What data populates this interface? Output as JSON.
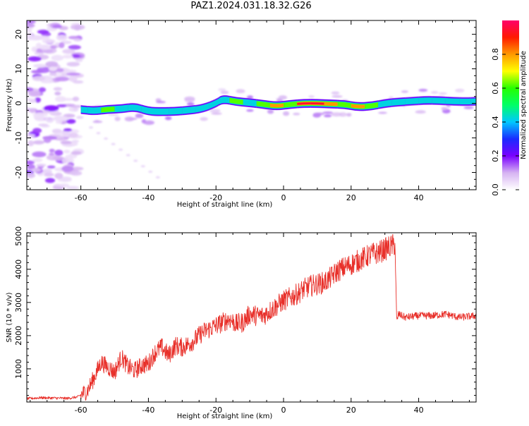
{
  "figure": {
    "title": "PAZ1.2024.031.18.32.G26"
  },
  "chart_data": [
    {
      "type": "heatmap",
      "title": "PAZ1.2024.031.18.32.G26",
      "xlabel": "Height of straight line (km)",
      "ylabel": "Frequency (Hz)",
      "xlim": [
        -76,
        57
      ],
      "ylim": [
        -25,
        24
      ],
      "x_ticks": [
        -60,
        -40,
        -20,
        0,
        20,
        40
      ],
      "y_ticks": [
        -20,
        -10,
        0,
        10,
        20
      ],
      "colorbar": {
        "label": "Normalized spectral amplitude",
        "range": [
          0,
          1
        ],
        "ticks": [
          0.0,
          0.2,
          0.4,
          0.6,
          0.8
        ],
        "colormap": "rainbow",
        "stops": [
          "#ffffff",
          "#d6b3f2",
          "#7a00ff",
          "#1a2bff",
          "#00c8ff",
          "#00ff66",
          "#26ff00",
          "#ffff00",
          "#ff9900",
          "#ff1a00",
          "#ff006a"
        ]
      },
      "ridge": {
        "x": [
          -60,
          -56,
          -52,
          -48,
          -44,
          -40,
          -36,
          -32,
          -28,
          -24,
          -20,
          -18,
          -14,
          -10,
          -6,
          -2,
          2,
          6,
          10,
          14,
          18,
          22,
          26,
          30,
          34,
          38,
          42,
          46,
          50,
          54,
          57
        ],
        "frequency": [
          -1.8,
          -2.2,
          -1.7,
          -1.6,
          -1.0,
          -2.3,
          -2.4,
          -2.3,
          -2.0,
          -1.5,
          0.0,
          1.3,
          0.5,
          0.2,
          -0.3,
          -0.8,
          -0.3,
          0.0,
          0.0,
          -0.2,
          -0.3,
          -1.0,
          -0.8,
          0.0,
          0.4,
          0.6,
          0.9,
          0.8,
          0.6,
          0.5,
          0.6
        ],
        "amplitude": [
          0.55,
          0.6,
          0.65,
          0.6,
          0.55,
          0.6,
          0.6,
          0.6,
          0.6,
          0.55,
          0.5,
          0.6,
          0.75,
          0.6,
          0.65,
          0.8,
          0.75,
          0.95,
          0.95,
          0.85,
          0.7,
          0.8,
          0.65,
          0.55,
          0.55,
          0.5,
          0.5,
          0.5,
          0.5,
          0.5,
          0.5
        ]
      }
    },
    {
      "type": "line",
      "xlabel": "Height of straight line (km)",
      "ylabel": "SNR (10 * v/v)",
      "xlim": [
        -76,
        57
      ],
      "ylim": [
        0,
        5100
      ],
      "x_ticks": [
        -60,
        -40,
        -20,
        0,
        20,
        40
      ],
      "y_ticks": [
        1000,
        2000,
        3000,
        4000,
        5000
      ],
      "line_color": "#e8302a",
      "series": [
        {
          "x": [
            -76,
            -72,
            -68,
            -64,
            -61,
            -58,
            -56,
            -54,
            -52,
            -50,
            -48,
            -46,
            -44,
            -42,
            -40,
            -38,
            -36,
            -34,
            -32,
            -30,
            -28,
            -26,
            -24,
            -22,
            -20,
            -18,
            -16,
            -14,
            -12,
            -10,
            -8,
            -6,
            -4,
            -2,
            0,
            2,
            4,
            6,
            8,
            10,
            12,
            14,
            16,
            18,
            20,
            22,
            24,
            26,
            28,
            30,
            32,
            33,
            33.5,
            34,
            36,
            40,
            44,
            48,
            52,
            57
          ],
          "values": [
            100,
            130,
            120,
            110,
            150,
            350,
            750,
            1200,
            1050,
            900,
            1350,
            1050,
            950,
            1100,
            1150,
            1500,
            1650,
            1400,
            1700,
            1650,
            1750,
            1900,
            2100,
            2200,
            2300,
            2400,
            2500,
            2350,
            2400,
            2650,
            2600,
            2600,
            2750,
            2900,
            3050,
            3150,
            3250,
            3400,
            3500,
            3550,
            3600,
            3750,
            3950,
            4050,
            4150,
            4250,
            4350,
            4450,
            4500,
            4600,
            4700,
            4750,
            2400,
            2650,
            2550,
            2600,
            2600,
            2650,
            2550,
            2600
          ]
        }
      ]
    }
  ]
}
